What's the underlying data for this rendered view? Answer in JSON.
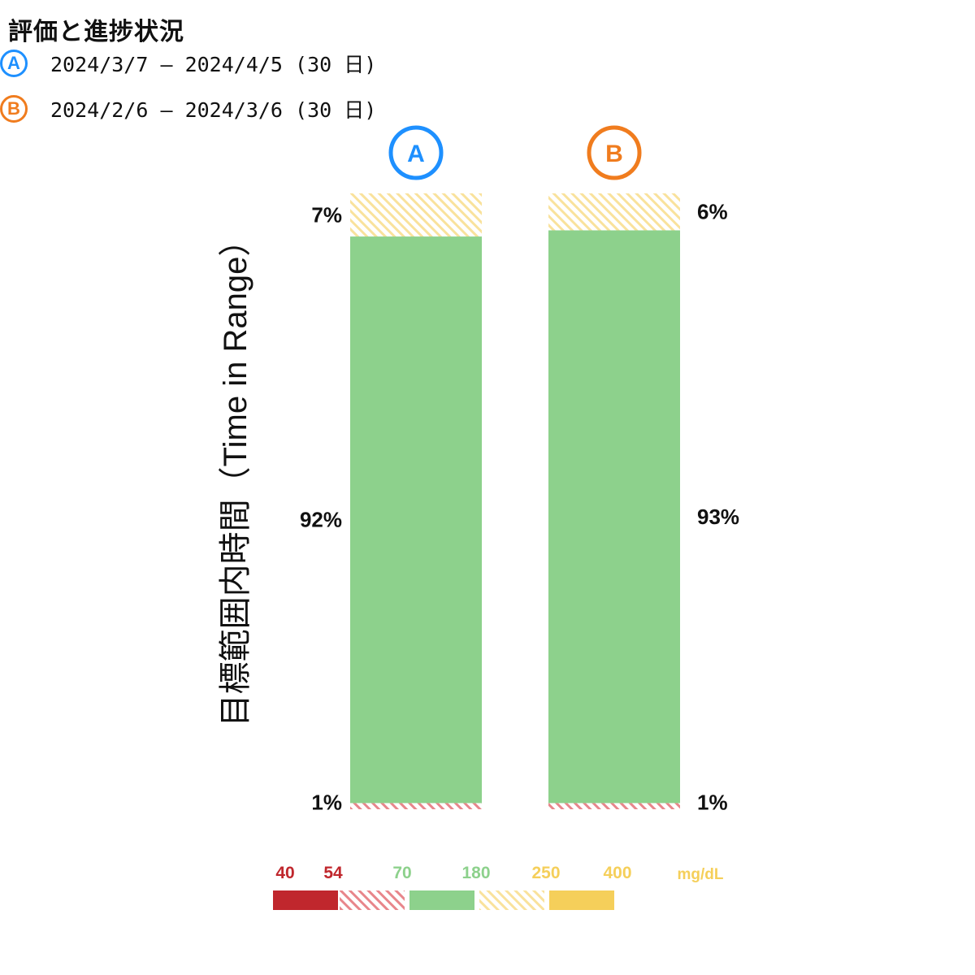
{
  "title": "評価と進捗状況",
  "periods": [
    {
      "id": "A",
      "label": "2024/3/7 – 2024/4/5 (30 日)",
      "color": "#1e90ff"
    },
    {
      "id": "B",
      "label": "2024/2/6 – 2024/3/6 (30 日)",
      "color": "#f07c1e"
    }
  ],
  "chart_data": {
    "type": "bar",
    "stacked": true,
    "ylabel": "目標範囲内時間（Time in Range）",
    "categories": [
      "A",
      "B"
    ],
    "series": [
      {
        "range": "54-70",
        "values": [
          1,
          1
        ],
        "color": "#d9363e",
        "pattern": "hatch"
      },
      {
        "range": "70-180",
        "values": [
          92,
          93
        ],
        "color": "#8dd18c",
        "pattern": "solid"
      },
      {
        "range": "180-250",
        "values": [
          7,
          6
        ],
        "color": "#f5cf5a",
        "pattern": "hatch"
      }
    ],
    "value_labels": {
      "A": [
        "7%",
        "92%",
        "1%"
      ],
      "B": [
        "6%",
        "93%",
        "1%"
      ]
    },
    "ylim": [
      0,
      100
    ],
    "legend": {
      "thresholds": [
        {
          "label": "40",
          "color": "#c0272d"
        },
        {
          "label": "54",
          "color": "#c0272d"
        },
        {
          "label": "70",
          "color": "#8dd18c"
        },
        {
          "label": "180",
          "color": "#8dd18c"
        },
        {
          "label": "250",
          "color": "#f5cf5a"
        },
        {
          "label": "400",
          "color": "#f5cf5a"
        }
      ],
      "unit": "mg/dL",
      "bands": [
        {
          "color": "#c0272d",
          "pattern": "solid"
        },
        {
          "color": "#d9363e",
          "pattern": "hatch"
        },
        {
          "color": "#8dd18c",
          "pattern": "solid"
        },
        {
          "color": "#f5cf5a",
          "pattern": "hatch"
        },
        {
          "color": "#f5cf5a",
          "pattern": "solid"
        }
      ]
    }
  }
}
